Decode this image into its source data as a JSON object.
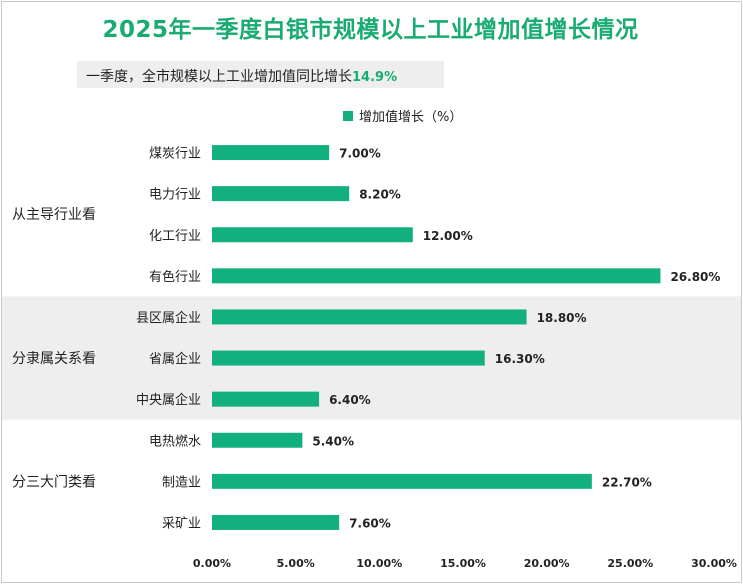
{
  "title": "2025年一季度白银市规模以上工业增加值增长情况",
  "note": {
    "text": "一季度，全市规模以上工业增加值同比增长",
    "value": "14.9%"
  },
  "colors": {
    "title": "#1aab73",
    "bar": "#12b07e",
    "band": "#eeeeee",
    "text": "#222222"
  },
  "chart_data": {
    "type": "bar",
    "orientation": "horizontal",
    "legend": "top",
    "series": [
      {
        "name": "增加值增长（%）",
        "values": [
          7.0,
          8.2,
          12.0,
          26.8,
          18.8,
          16.3,
          6.4,
          5.4,
          22.7,
          7.6
        ]
      }
    ],
    "categories": [
      "煤炭行业",
      "电力行业",
      "化工行业",
      "有色行业",
      "县区属企业",
      "省属企业",
      "中央属企业",
      "电热燃水",
      "制造业",
      "采矿业"
    ],
    "value_labels": [
      "7.00%",
      "8.20%",
      "12.00%",
      "26.80%",
      "18.80%",
      "16.30%",
      "6.40%",
      "5.40%",
      "22.70%",
      "7.60%"
    ],
    "groups": [
      {
        "label": "从主导行业看",
        "count": 4
      },
      {
        "label": "分隶属关系看",
        "count": 3
      },
      {
        "label": "分三大门类看",
        "count": 3
      }
    ],
    "xlim": [
      0,
      30
    ],
    "x_ticks": [
      0,
      5,
      10,
      15,
      20,
      25,
      30
    ],
    "x_tick_labels": [
      "0.00%",
      "5.00%",
      "10.00%",
      "15.00%",
      "20.00%",
      "25.00%",
      "30.00%"
    ],
    "grid": false
  }
}
